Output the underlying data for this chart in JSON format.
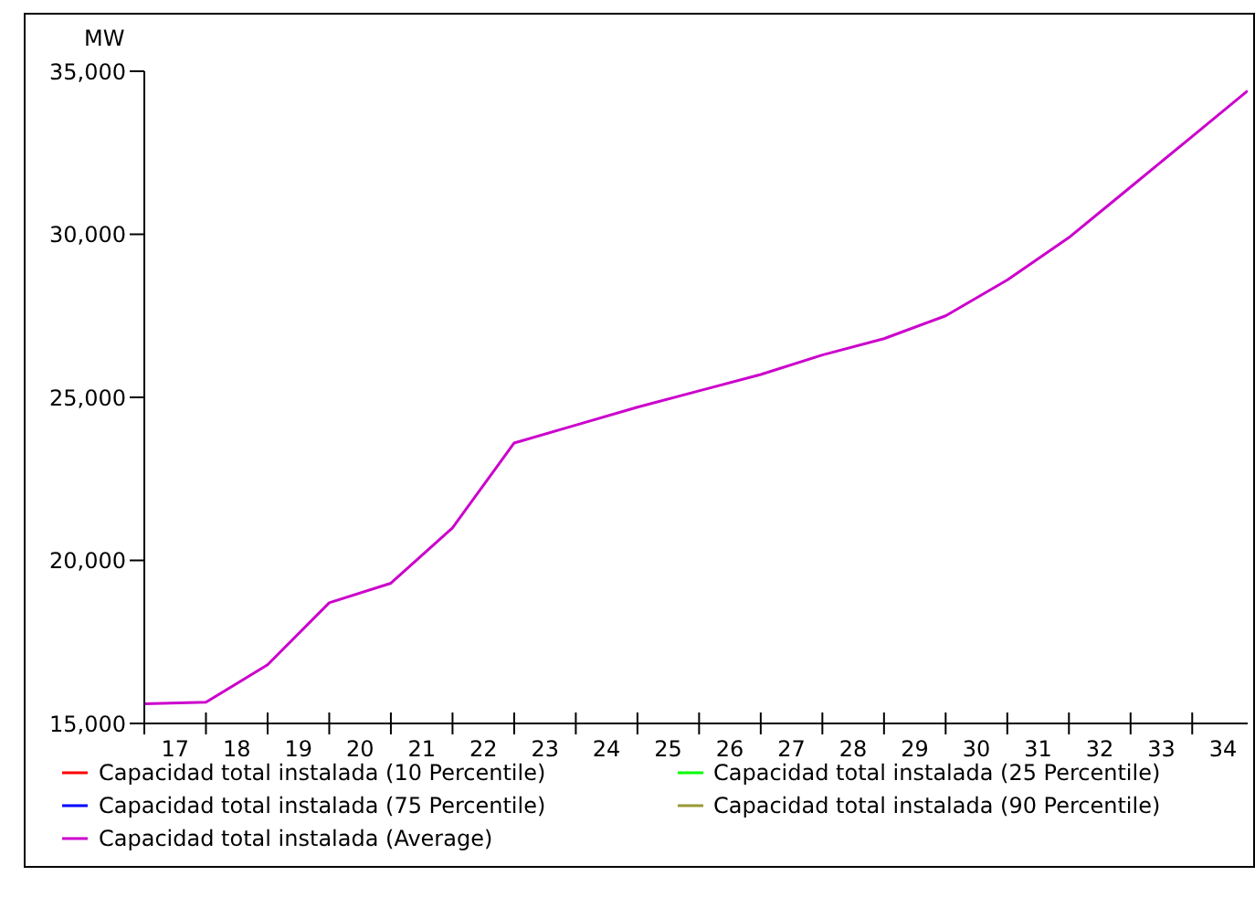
{
  "chart_data": {
    "type": "line",
    "ylabel": "MW",
    "x": [
      16.5,
      17.5,
      18.5,
      19.5,
      20.5,
      21.5,
      22.5,
      23.5,
      24.5,
      25.5,
      26.5,
      27.5,
      28.5,
      29.5,
      30.5,
      31.5,
      32.5,
      33.5,
      34.4
    ],
    "series": [
      {
        "name": "Capacidad total instalada (10 Percentile)",
        "color": "#ff0000",
        "values": [
          null,
          null,
          null,
          null,
          null,
          null,
          null,
          null,
          null,
          null,
          null,
          null,
          null,
          null,
          null,
          null,
          null,
          null,
          null
        ]
      },
      {
        "name": "Capacidad total instalada (25 Percentile)",
        "color": "#00ff00",
        "values": [
          null,
          null,
          null,
          null,
          null,
          null,
          null,
          null,
          null,
          null,
          null,
          null,
          null,
          null,
          null,
          null,
          null,
          null,
          null
        ]
      },
      {
        "name": "Capacidad total instalada (75 Percentile)",
        "color": "#0000ff",
        "values": [
          null,
          null,
          null,
          null,
          null,
          null,
          null,
          null,
          null,
          null,
          null,
          null,
          null,
          null,
          null,
          null,
          null,
          null,
          null
        ]
      },
      {
        "name": "Capacidad total instalada (90 Percentile)",
        "color": "#999933",
        "values": [
          null,
          null,
          null,
          null,
          null,
          null,
          null,
          null,
          null,
          null,
          null,
          null,
          null,
          null,
          null,
          null,
          null,
          null,
          null
        ]
      },
      {
        "name": "Capacidad total instalada (Average)",
        "color": "#cc00cc",
        "values": [
          15600,
          15650,
          16800,
          18700,
          19300,
          21000,
          23600,
          24150,
          24700,
          25200,
          25700,
          26300,
          26800,
          27500,
          28600,
          29900,
          31450,
          33000,
          34400
        ]
      }
    ],
    "xlim": [
      16.5,
      34.4
    ],
    "xticks": [
      {
        "value": 16.5,
        "label": null
      },
      {
        "value": 17,
        "label": "17"
      },
      {
        "value": 17.5,
        "label": null
      },
      {
        "value": 18,
        "label": "18"
      },
      {
        "value": 18.5,
        "label": null
      },
      {
        "value": 19,
        "label": "19"
      },
      {
        "value": 19.5,
        "label": null
      },
      {
        "value": 20,
        "label": "20"
      },
      {
        "value": 20.5,
        "label": null
      },
      {
        "value": 21,
        "label": "21"
      },
      {
        "value": 21.5,
        "label": null
      },
      {
        "value": 22,
        "label": "22"
      },
      {
        "value": 22.5,
        "label": null
      },
      {
        "value": 23,
        "label": "23"
      },
      {
        "value": 23.5,
        "label": null
      },
      {
        "value": 24,
        "label": "24"
      },
      {
        "value": 24.5,
        "label": null
      },
      {
        "value": 25,
        "label": "25"
      },
      {
        "value": 25.5,
        "label": null
      },
      {
        "value": 26,
        "label": "26"
      },
      {
        "value": 26.5,
        "label": null
      },
      {
        "value": 27,
        "label": "27"
      },
      {
        "value": 27.5,
        "label": null
      },
      {
        "value": 28,
        "label": "28"
      },
      {
        "value": 28.5,
        "label": null
      },
      {
        "value": 29,
        "label": "29"
      },
      {
        "value": 29.5,
        "label": null
      },
      {
        "value": 30,
        "label": "30"
      },
      {
        "value": 30.5,
        "label": null
      },
      {
        "value": 31,
        "label": "31"
      },
      {
        "value": 31.5,
        "label": null
      },
      {
        "value": 32,
        "label": "32"
      },
      {
        "value": 32.5,
        "label": null
      },
      {
        "value": 33,
        "label": "33"
      },
      {
        "value": 33.5,
        "label": null
      },
      {
        "value": 34,
        "label": "34"
      }
    ],
    "ylim": [
      15000,
      35000
    ],
    "yticks": [
      {
        "value": 15000,
        "label": "15,000"
      },
      {
        "value": 20000,
        "label": "20,000"
      },
      {
        "value": 25000,
        "label": "25,000"
      },
      {
        "value": 30000,
        "label": "30,000"
      },
      {
        "value": 35000,
        "label": "35,000"
      }
    ],
    "grid": false,
    "legend": "bottom",
    "marker": "none",
    "line_style": "solid"
  }
}
